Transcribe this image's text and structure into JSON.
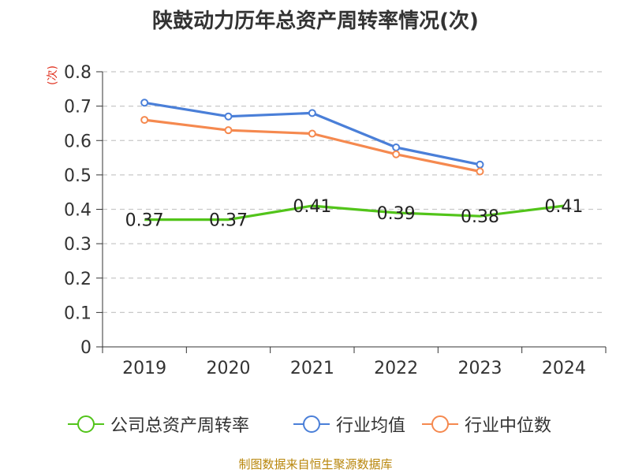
{
  "title": "陕鼓动力历年总资产周转率情况(次)",
  "unit": "(次)",
  "source": "制图数据来自恒生聚源数据库",
  "chart_data": {
    "type": "line",
    "title": "陕鼓动力历年总资产周转率情况(次)",
    "ylabel": "(次)",
    "xlabel": "",
    "categories": [
      "2019",
      "2020",
      "2021",
      "2022",
      "2023",
      "2024"
    ],
    "ylim": [
      0,
      0.8
    ],
    "yticks": [
      "0",
      "0.1",
      "0.2",
      "0.3",
      "0.4",
      "0.5",
      "0.6",
      "0.7",
      "0.8"
    ],
    "grid": true,
    "legend_position": "bottom",
    "series": [
      {
        "name": "公司总资产周转率",
        "color": "#52c41a",
        "values": [
          0.37,
          0.37,
          0.41,
          0.39,
          0.38,
          0.41
        ],
        "labels": [
          "0.37",
          "0.37",
          "0.41",
          "0.39",
          "0.38",
          "0.41"
        ],
        "markers": false
      },
      {
        "name": "行业均值",
        "color": "#4a7fd8",
        "values": [
          0.71,
          0.67,
          0.68,
          0.58,
          0.53,
          null
        ],
        "markers": true
      },
      {
        "name": "行业中位数",
        "color": "#f5894f",
        "values": [
          0.66,
          0.63,
          0.62,
          0.56,
          0.51,
          null
        ],
        "markers": true
      }
    ]
  }
}
